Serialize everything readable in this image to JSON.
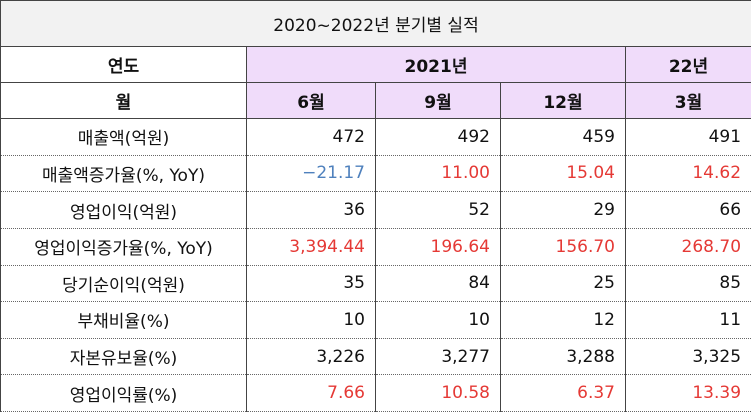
{
  "title": "2020~2022년 분기별 실적",
  "header": {
    "year_label": "연도",
    "years": [
      "2021년",
      "22년"
    ],
    "month_label": "월",
    "months": [
      "6월",
      "9월",
      "12월",
      "3월"
    ]
  },
  "rows": [
    {
      "label": "매출액(억원)",
      "values": [
        "472",
        "492",
        "459",
        "491"
      ]
    },
    {
      "label": "매출액증가율(%, YoY)",
      "values": [
        "−21.17",
        "11.00",
        "15.04",
        "14.62"
      ],
      "colors": [
        "#4f81bd",
        "#e53935",
        "#e53935",
        "#e53935"
      ]
    },
    {
      "label": "영업이익(억원)",
      "values": [
        "36",
        "52",
        "29",
        "66"
      ]
    },
    {
      "label": "영업이익증가율(%, YoY)",
      "values": [
        "3,394.44",
        "196.64",
        "156.70",
        "268.70"
      ],
      "colors": [
        "#e53935",
        "#e53935",
        "#e53935",
        "#e53935"
      ]
    },
    {
      "label": "당기순이익(억원)",
      "values": [
        "35",
        "84",
        "25",
        "85"
      ]
    },
    {
      "label": "부채비율(%)",
      "values": [
        "10",
        "10",
        "12",
        "11"
      ]
    },
    {
      "label": "자본유보율(%)",
      "values": [
        "3,226",
        "3,277",
        "3,288",
        "3,325"
      ]
    },
    {
      "label": "영업이익률(%)",
      "values": [
        "7.66",
        "10.58",
        "6.37",
        "13.39"
      ],
      "colors": [
        "#e53935",
        "#e53935",
        "#e53935",
        "#e53935"
      ]
    }
  ]
}
